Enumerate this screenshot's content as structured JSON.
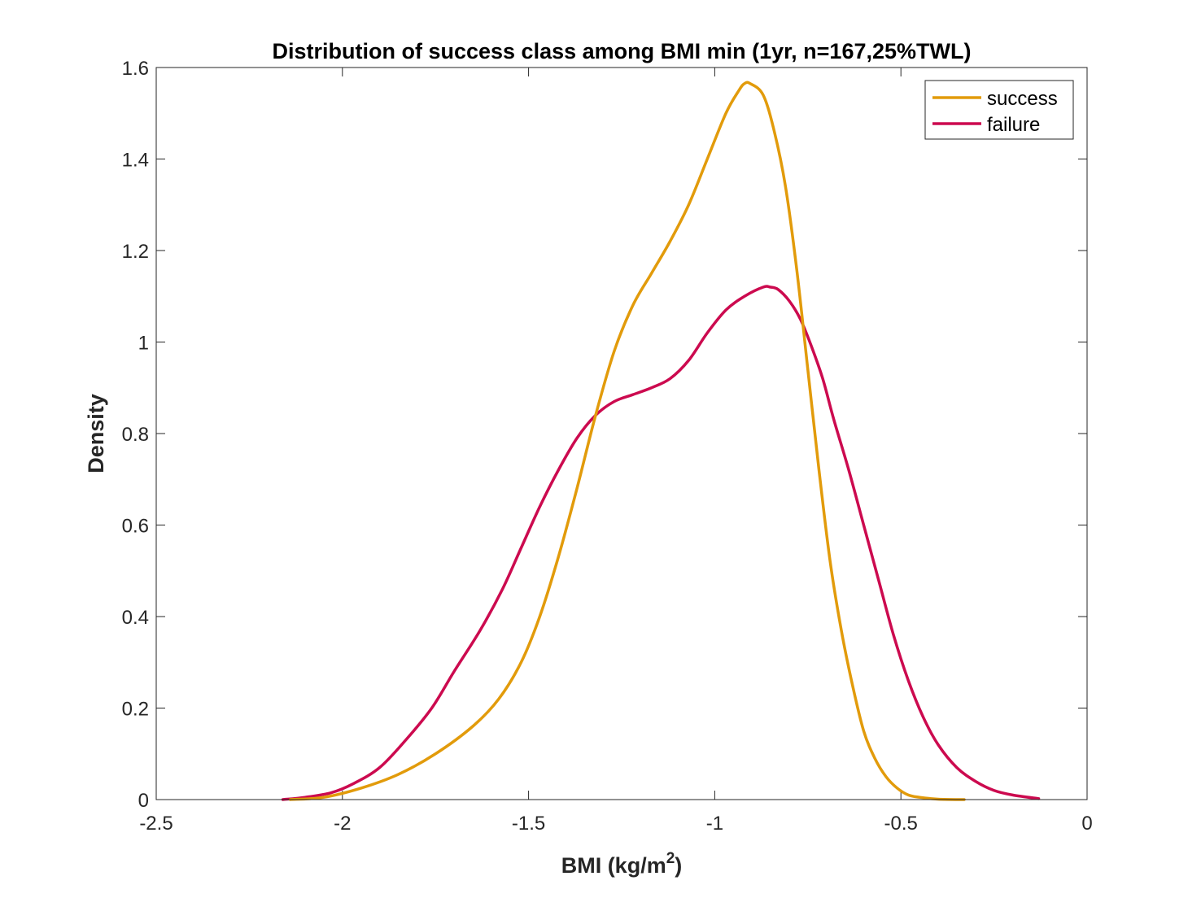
{
  "chart_data": {
    "type": "line",
    "title": "Distribution of success class among BMI min (1yr, n=167,25%TWL)",
    "xlabel": {
      "prefix": "BMI (kg/m",
      "superscript": "2",
      "suffix": ")"
    },
    "ylabel": "Density",
    "xlim": [
      -2.5,
      0
    ],
    "ylim": [
      0,
      1.6
    ],
    "xticks": [
      -2.5,
      -2,
      -1.5,
      -1,
      -0.5,
      0
    ],
    "xtick_labels": [
      "-2.5",
      "-2",
      "-1.5",
      "-1",
      "-0.5",
      "0"
    ],
    "yticks": [
      0,
      0.2,
      0.4,
      0.6,
      0.8,
      1,
      1.2,
      1.4,
      1.6
    ],
    "ytick_labels": [
      "0",
      "0.2",
      "0.4",
      "0.6",
      "0.8",
      "1",
      "1.2",
      "1.4",
      "1.6"
    ],
    "grid": false,
    "legend_location": "top-right",
    "series": [
      {
        "name": "success",
        "color": "#e29b0b",
        "x": [
          -2.14,
          -2.05,
          -1.95,
          -1.85,
          -1.75,
          -1.65,
          -1.58,
          -1.52,
          -1.47,
          -1.42,
          -1.37,
          -1.32,
          -1.27,
          -1.22,
          -1.17,
          -1.12,
          -1.07,
          -1.02,
          -0.97,
          -0.935,
          -0.92,
          -0.905,
          -0.87,
          -0.84,
          -0.81,
          -0.78,
          -0.75,
          -0.72,
          -0.69,
          -0.66,
          -0.63,
          -0.6,
          -0.57,
          -0.54,
          -0.51,
          -0.48,
          -0.45,
          -0.4,
          -0.33
        ],
        "y": [
          0.0,
          0.005,
          0.025,
          0.055,
          0.1,
          0.16,
          0.22,
          0.3,
          0.4,
          0.53,
          0.68,
          0.84,
          0.98,
          1.08,
          1.15,
          1.22,
          1.3,
          1.4,
          1.5,
          1.55,
          1.565,
          1.565,
          1.54,
          1.46,
          1.34,
          1.16,
          0.94,
          0.72,
          0.52,
          0.37,
          0.25,
          0.15,
          0.09,
          0.05,
          0.025,
          0.01,
          0.005,
          0.001,
          0.0
        ]
      },
      {
        "name": "failure",
        "color": "#cc0a4f",
        "x": [
          -2.16,
          -2.1,
          -2.03,
          -1.97,
          -1.9,
          -1.83,
          -1.76,
          -1.7,
          -1.63,
          -1.57,
          -1.52,
          -1.47,
          -1.42,
          -1.37,
          -1.32,
          -1.27,
          -1.22,
          -1.17,
          -1.12,
          -1.07,
          -1.02,
          -0.97,
          -0.92,
          -0.87,
          -0.85,
          -0.83,
          -0.8,
          -0.77,
          -0.74,
          -0.71,
          -0.68,
          -0.64,
          -0.6,
          -0.56,
          -0.52,
          -0.48,
          -0.44,
          -0.4,
          -0.35,
          -0.3,
          -0.25,
          -0.2,
          -0.13
        ],
        "y": [
          0.0,
          0.005,
          0.015,
          0.035,
          0.07,
          0.13,
          0.2,
          0.28,
          0.37,
          0.46,
          0.55,
          0.64,
          0.72,
          0.79,
          0.84,
          0.87,
          0.885,
          0.9,
          0.92,
          0.96,
          1.02,
          1.07,
          1.1,
          1.12,
          1.12,
          1.115,
          1.09,
          1.05,
          0.99,
          0.92,
          0.83,
          0.72,
          0.6,
          0.48,
          0.36,
          0.26,
          0.18,
          0.12,
          0.07,
          0.04,
          0.02,
          0.01,
          0.002
        ]
      }
    ]
  }
}
